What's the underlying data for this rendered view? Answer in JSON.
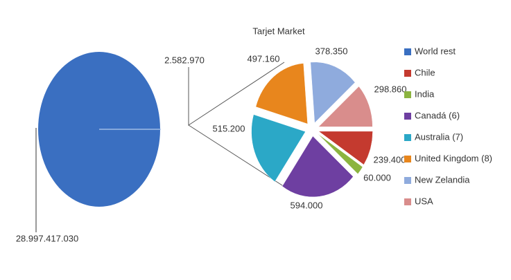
{
  "chart_data": {
    "type": "pie-of-pie",
    "title": "Tarjet Market",
    "categories": [
      "World rest",
      "Chile",
      "India",
      "Canadá  (6)",
      "Australia (7)",
      "United Kingdom (8)",
      "New Zelandia",
      "USA"
    ],
    "values": [
      28997417030,
      239400,
      60000,
      594000,
      515200,
      497160,
      378350,
      298860
    ],
    "value_labels": [
      "28.997.417.030",
      "239.400",
      "60.000",
      "594.000",
      "515.200",
      "497.160",
      "378.350",
      "298.860"
    ],
    "colors": [
      "#3a6fc1",
      "#c43a2f",
      "#8cb440",
      "#6e3fa1",
      "#2ba8c7",
      "#e8861d",
      "#8fabdd",
      "#d98d8c"
    ],
    "other_value": 2582970,
    "other_label": "2.582.970"
  }
}
